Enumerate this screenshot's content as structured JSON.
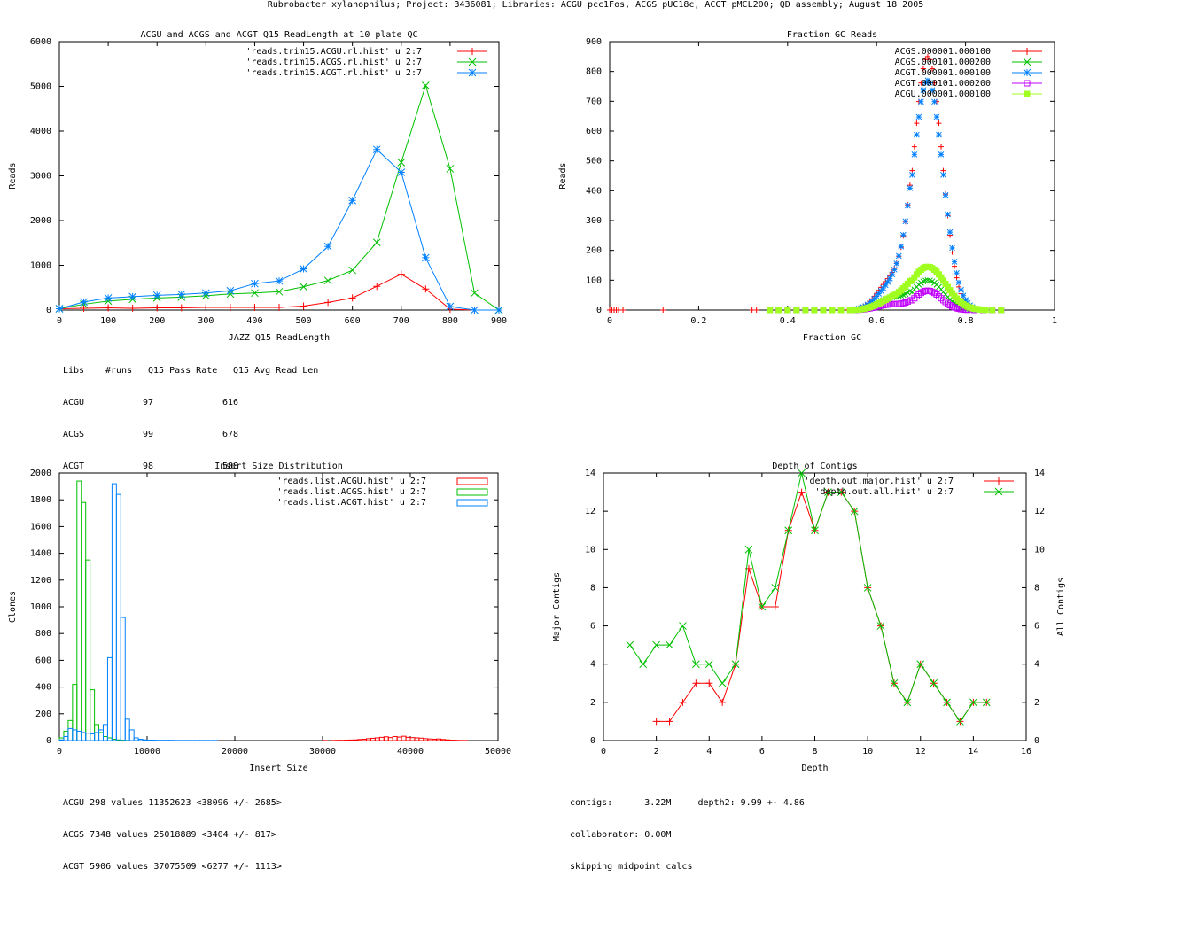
{
  "page_title": "Rubrobacter xylanophilus; Project: 3436081; Libraries: ACGU pcc1Fos, ACGS pUC18c, ACGT pMCL200; QD assembly; August 18 2005",
  "chart_data": [
    {
      "type": "line",
      "title": "ACGU and ACGS and ACGT Q15 ReadLength at 10 plate QC",
      "xlabel": "JAZZ Q15 ReadLength",
      "ylabel": "Reads",
      "xlim": [
        0,
        900
      ],
      "ylim": [
        0,
        6000
      ],
      "xticks": [
        0,
        100,
        200,
        300,
        400,
        500,
        600,
        700,
        800,
        900
      ],
      "yticks": [
        0,
        1000,
        2000,
        3000,
        4000,
        5000,
        6000
      ],
      "legend_position": "top-right",
      "series": [
        {
          "name": "'reads.trim15.ACGU.rl.hist' u 2:7",
          "color": "#ff0000",
          "marker": "plus",
          "x": [
            0,
            50,
            100,
            150,
            200,
            250,
            300,
            350,
            400,
            450,
            500,
            550,
            600,
            650,
            700,
            750,
            800,
            850,
            900
          ],
          "y": [
            30,
            40,
            50,
            40,
            50,
            50,
            60,
            60,
            60,
            60,
            90,
            170,
            270,
            530,
            800,
            470,
            20,
            0,
            0
          ]
        },
        {
          "name": "'reads.trim15.ACGS.rl.hist' u 2:7",
          "color": "#00c000",
          "marker": "cross",
          "x": [
            0,
            50,
            100,
            150,
            200,
            250,
            300,
            350,
            400,
            450,
            500,
            550,
            600,
            650,
            700,
            750,
            800,
            850,
            900
          ],
          "y": [
            30,
            130,
            200,
            240,
            270,
            290,
            320,
            360,
            380,
            410,
            520,
            660,
            890,
            1510,
            3300,
            5020,
            3160,
            380,
            0
          ]
        },
        {
          "name": "'reads.trim15.ACGT.rl.hist' u 2:7",
          "color": "#0080ff",
          "marker": "star",
          "x": [
            0,
            50,
            100,
            150,
            200,
            250,
            300,
            350,
            400,
            450,
            500,
            550,
            600,
            650,
            700,
            750,
            800,
            850,
            900
          ],
          "y": [
            30,
            180,
            270,
            300,
            330,
            350,
            380,
            430,
            590,
            650,
            920,
            1420,
            2450,
            3590,
            3080,
            1170,
            80,
            0,
            0
          ]
        }
      ],
      "stats_table": {
        "headers": [
          "Libs",
          "#runs",
          "Q15 Pass Rate",
          "Q15 Avg Read Len"
        ],
        "rows": [
          [
            "ACGU",
            "97",
            "",
            "616"
          ],
          [
            "ACGS",
            "99",
            "",
            "678"
          ],
          [
            "ACGT",
            "98",
            "",
            "588"
          ]
        ]
      }
    },
    {
      "type": "scatter",
      "title": "Fraction GC Reads",
      "xlabel": "Fraction GC",
      "ylabel": "Reads",
      "xlim": [
        0,
        1
      ],
      "ylim": [
        0,
        900
      ],
      "xticks": [
        0,
        0.2,
        0.4,
        0.6,
        0.8,
        1
      ],
      "yticks": [
        0,
        100,
        200,
        300,
        400,
        500,
        600,
        700,
        800,
        900
      ],
      "legend_position": "top-right",
      "series": [
        {
          "name": "ACGS.000001.000100",
          "color": "#ff0000",
          "marker": "plus",
          "peak": 850,
          "width": 0.032,
          "tail": 1.0
        },
        {
          "name": "ACGS.000101.000200",
          "color": "#00c000",
          "marker": "cross",
          "peak": 100,
          "width": 0.035,
          "tail": 0.4
        },
        {
          "name": "ACGT.000001.000100",
          "color": "#0080ff",
          "marker": "star",
          "peak": 770,
          "width": 0.034,
          "tail": 0.8
        },
        {
          "name": "ACGT.000101.000200",
          "color": "#c000ff",
          "marker": "square",
          "peak": 65,
          "width": 0.03,
          "tail": 0.2
        },
        {
          "name": "ACGU.000001.000100",
          "color": "#a0ff20",
          "marker": "filled-square",
          "peak": 145,
          "width": 0.04,
          "tail": 0.3
        }
      ]
    },
    {
      "type": "bar",
      "title": "Insert Size Distribution",
      "xlabel": "Insert Size",
      "ylabel": "Clones",
      "xlim": [
        0,
        50000
      ],
      "ylim": [
        0,
        2000
      ],
      "xticks": [
        0,
        10000,
        20000,
        30000,
        40000,
        50000
      ],
      "yticks": [
        0,
        200,
        400,
        600,
        800,
        1000,
        1200,
        1400,
        1600,
        1800,
        2000
      ],
      "legend_position": "top-right",
      "series": [
        {
          "name": "'reads.list.ACGU.hist' u 2:7",
          "color": "#ff0000",
          "x": [
            30000,
            30500,
            31000,
            31500,
            32000,
            32500,
            33000,
            33500,
            34000,
            34500,
            35000,
            35500,
            36000,
            36500,
            37000,
            37500,
            38000,
            38500,
            39000,
            39500,
            40000,
            40500,
            41000,
            41500,
            42000,
            42500,
            43000,
            43500,
            44000,
            44500,
            45000,
            45500,
            46000
          ],
          "y": [
            1,
            0,
            1,
            2,
            2,
            3,
            4,
            5,
            8,
            10,
            14,
            17,
            20,
            24,
            28,
            22,
            30,
            26,
            32,
            24,
            22,
            20,
            18,
            14,
            12,
            10,
            12,
            8,
            5,
            3,
            2,
            1,
            1
          ]
        },
        {
          "name": "'reads.list.ACGS.hist' u 2:7",
          "color": "#00c000",
          "x": [
            0,
            500,
            1000,
            1500,
            2000,
            2500,
            3000,
            3500,
            4000,
            4500,
            5000,
            5500,
            6000,
            6500,
            7000,
            7500,
            8000
          ],
          "y": [
            20,
            70,
            150,
            420,
            1940,
            1780,
            1350,
            380,
            120,
            60,
            30,
            20,
            10,
            5,
            3,
            1,
            0
          ]
        },
        {
          "name": "'reads.list.ACGT.hist' u 2:7",
          "color": "#0080ff",
          "x": [
            0,
            500,
            1000,
            1500,
            2000,
            2500,
            3000,
            3500,
            4000,
            4500,
            5000,
            5500,
            6000,
            6500,
            7000,
            7500,
            8000,
            8500,
            9000,
            9500,
            10000,
            10500,
            11000,
            11500,
            12000,
            12500,
            13000,
            13500,
            14000,
            14500,
            15000,
            15500,
            16000,
            16500,
            17000,
            17500
          ],
          "y": [
            5,
            30,
            90,
            80,
            70,
            60,
            55,
            50,
            60,
            80,
            120,
            620,
            1920,
            1840,
            920,
            160,
            80,
            20,
            10,
            5,
            3,
            3,
            2,
            2,
            2,
            2,
            1,
            1,
            1,
            1,
            1,
            1,
            1,
            1,
            1,
            1
          ]
        }
      ],
      "stats_lines": [
        "ACGU 298 values 11352623 <38096 +/- 2685>",
        "ACGS 7348 values 25018889 <3404 +/- 817>",
        "ACGT 5906 values 37075509 <6277 +/- 1113>"
      ]
    },
    {
      "type": "line",
      "title": "Depth of Contigs",
      "xlabel": "Depth",
      "ylabel": "Major Contigs",
      "y2label": "All Contigs",
      "xlim": [
        0,
        16
      ],
      "ylim": [
        0,
        14
      ],
      "y2lim": [
        0,
        14
      ],
      "xticks": [
        0,
        2,
        4,
        6,
        8,
        10,
        12,
        14,
        16
      ],
      "yticks": [
        0,
        2,
        4,
        6,
        8,
        10,
        12,
        14
      ],
      "legend_position": "top-right",
      "series": [
        {
          "name": "'depth.out.major.hist' u 2:7",
          "color": "#ff0000",
          "marker": "plus",
          "x": [
            2,
            2.5,
            3,
            3.5,
            4,
            4.5,
            5,
            5.5,
            6,
            6.5,
            7,
            7.5,
            8,
            8.5,
            9,
            9.5,
            10,
            10.5,
            11,
            11.5,
            12,
            12.5,
            13,
            13.5,
            14,
            14.5
          ],
          "y": [
            1,
            1,
            2,
            3,
            3,
            2,
            4,
            9,
            7,
            7,
            11,
            13,
            11,
            13,
            13,
            12,
            8,
            6,
            3,
            2,
            4,
            3,
            2,
            1,
            2,
            2
          ]
        },
        {
          "name": "'depth.out.all.hist' u 2:7",
          "color": "#00c000",
          "marker": "cross",
          "x": [
            1,
            1.5,
            2,
            2.5,
            3,
            3.5,
            4,
            4.5,
            5,
            5.5,
            6,
            6.5,
            7,
            7.5,
            8,
            8.5,
            9,
            9.5,
            10,
            10.5,
            11,
            11.5,
            12,
            12.5,
            13,
            13.5,
            14,
            14.5
          ],
          "y": [
            5,
            4,
            5,
            5,
            6,
            4,
            4,
            3,
            4,
            10,
            7,
            8,
            11,
            14,
            11,
            13,
            13,
            12,
            8,
            6,
            3,
            2,
            4,
            3,
            2,
            1,
            2,
            2
          ]
        }
      ],
      "stats_lines": [
        "contigs:      3.22M     depth2: 9.99 +- 4.86",
        "collaborator: 0.00M",
        "skipping midpoint calcs"
      ]
    }
  ]
}
